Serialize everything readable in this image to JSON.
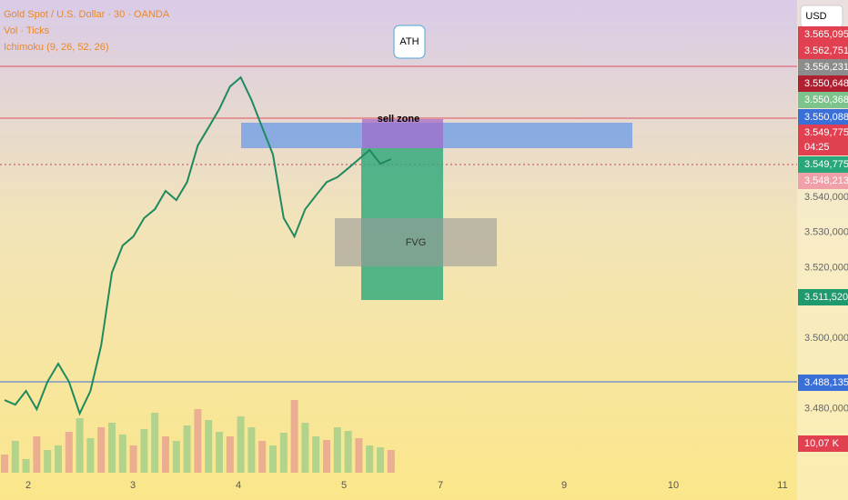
{
  "header": {
    "symbol": "Gold Spot / U.S. Dollar · 30 · OANDA",
    "volume": "Vol · Ticks",
    "indicator": "Ichimoku (9, 26, 52, 26)",
    "currency": "USD"
  },
  "annotations": {
    "ath": "ATH",
    "sell_zone": "sell zone",
    "fvg": "FVG"
  },
  "price_axis": {
    "ticks": [
      {
        "value": 3540,
        "label": "3.540,000"
      },
      {
        "value": 3530,
        "label": "3.530,000"
      },
      {
        "value": 3520,
        "label": "3.520,000"
      },
      {
        "value": 3500,
        "label": "3.500,000"
      },
      {
        "value": 3480,
        "label": "3.480,000"
      }
    ]
  },
  "price_tags": [
    "3.565,095",
    "3.562,751",
    "3.556,231",
    "3.550,648",
    "3.550,368",
    "3.550,088",
    "3.549,775",
    "04:25",
    "3.549,775",
    "3.548,213",
    "3.511,520",
    "3.488,135",
    "10,07 K"
  ],
  "time_axis": [
    "2",
    "3",
    "4",
    "5",
    "7",
    "9",
    "10",
    "11"
  ],
  "price_series": [
    3482.5,
    3481.2,
    3485.1,
    3479.9,
    3487.7,
    3492.8,
    3487.7,
    3478.7,
    3485.1,
    3498.0,
    3518.6,
    3526.3,
    3528.9,
    3534.1,
    3536.6,
    3541.8,
    3539.2,
    3544.3,
    3554.7,
    3559.8,
    3565.0,
    3571.4,
    3574.0,
    3567.6,
    3559.8,
    3552.1,
    3534.1,
    3528.9,
    3536.6,
    3540.5,
    3544.3,
    3545.7,
    3548.2,
    3550.8,
    3553.4,
    3549.5,
    3550.8
  ],
  "volume_series": [
    20,
    35,
    15,
    40,
    25,
    30,
    45,
    60,
    38,
    50,
    55,
    42,
    30,
    48,
    66,
    40,
    35,
    52,
    70,
    58,
    45,
    40,
    62,
    50,
    35,
    30,
    44,
    80,
    55,
    40,
    36,
    50,
    46,
    38,
    30,
    28,
    25
  ]
}
